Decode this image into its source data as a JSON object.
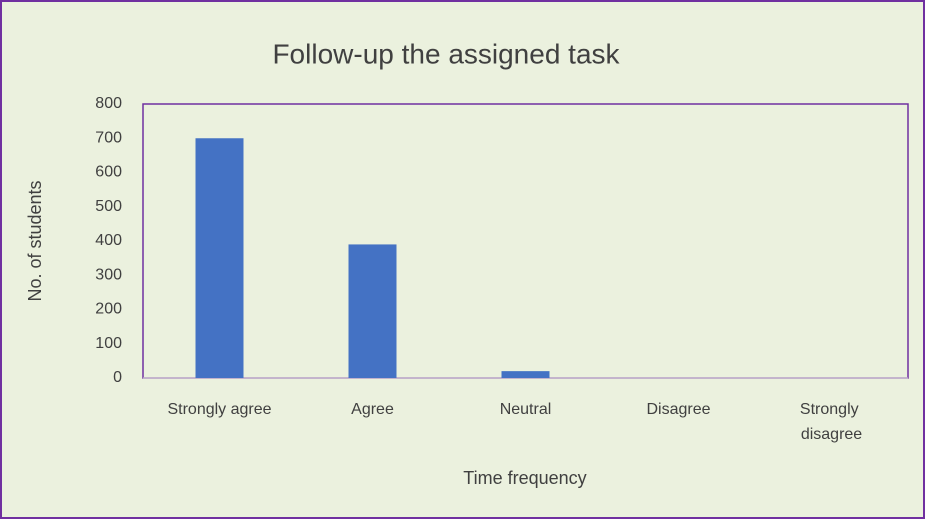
{
  "chart_data": {
    "type": "bar",
    "title": "Follow-up the assigned task",
    "x_label": "Time frequency",
    "y_label": "No. of students",
    "categories": [
      "Strongly agree",
      "Agree",
      "Neutral",
      "Disagree",
      "Strongly disagree"
    ],
    "values": [
      700,
      390,
      20,
      0,
      0
    ],
    "color": "#4472c4",
    "ylim": [
      0,
      800
    ],
    "yticks": [
      0,
      100,
      200,
      300,
      400,
      500,
      600,
      700,
      800
    ],
    "grid": false
  }
}
